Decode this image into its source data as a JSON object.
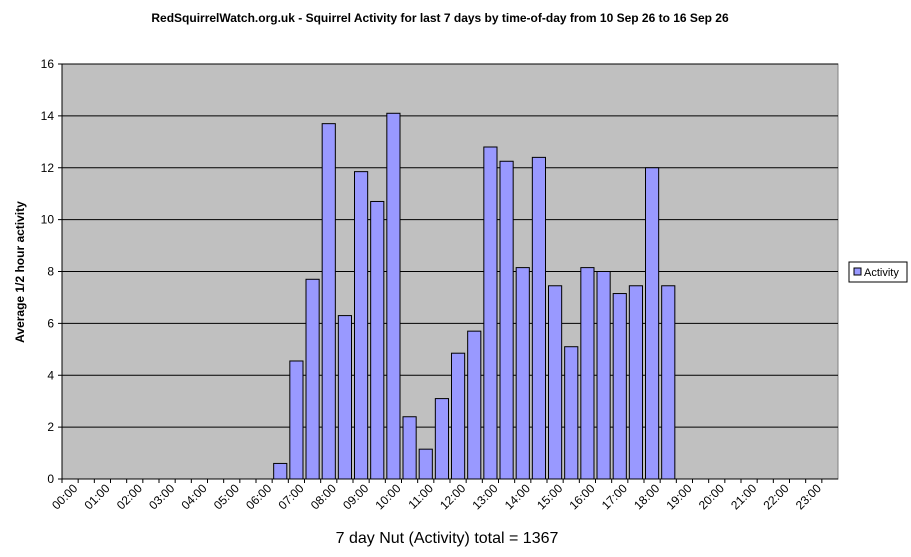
{
  "chart_data": {
    "type": "bar",
    "title": "RedSquirrelWatch.org.uk - Squirrel Activity for last 7 days by time-of-day from 10 Sep 26 to 16 Sep 26",
    "y_label": "Average 1/2 hour activity",
    "x_label": "7 day Nut (Activity) total = 1367",
    "categories": [
      "00:00",
      null,
      "01:00",
      null,
      "02:00",
      null,
      "03:00",
      null,
      "04:00",
      null,
      "05:00",
      null,
      "06:00",
      null,
      "07:00",
      null,
      "08:00",
      null,
      "09:00",
      null,
      "10:00",
      null,
      "11:00",
      null,
      "12:00",
      null,
      "13:00",
      null,
      "14:00",
      null,
      "15:00",
      null,
      "16:00",
      null,
      "17:00",
      null,
      "18:00",
      null,
      "19:00",
      null,
      "20:00",
      null,
      "21:00",
      null,
      "22:00",
      null,
      "23:00",
      null
    ],
    "series": [
      {
        "name": "Activity",
        "color": "#9999ff",
        "values": [
          0,
          0,
          0,
          0,
          0,
          0,
          0,
          0,
          0,
          0,
          0,
          0,
          0,
          0.6,
          4.55,
          7.7,
          13.7,
          6.3,
          11.85,
          10.7,
          14.1,
          2.4,
          1.15,
          3.1,
          4.85,
          5.7,
          12.8,
          12.25,
          8.15,
          12.4,
          7.45,
          5.1,
          8.15,
          8.0,
          7.15,
          7.45,
          12.0,
          7.45,
          0,
          0,
          0,
          0,
          0,
          0,
          0,
          0,
          0,
          0
        ]
      }
    ],
    "ylim": [
      0,
      16
    ],
    "yticks": [
      0,
      2,
      4,
      6,
      8,
      10,
      12,
      14,
      16
    ],
    "grid": true,
    "legend": "right"
  }
}
